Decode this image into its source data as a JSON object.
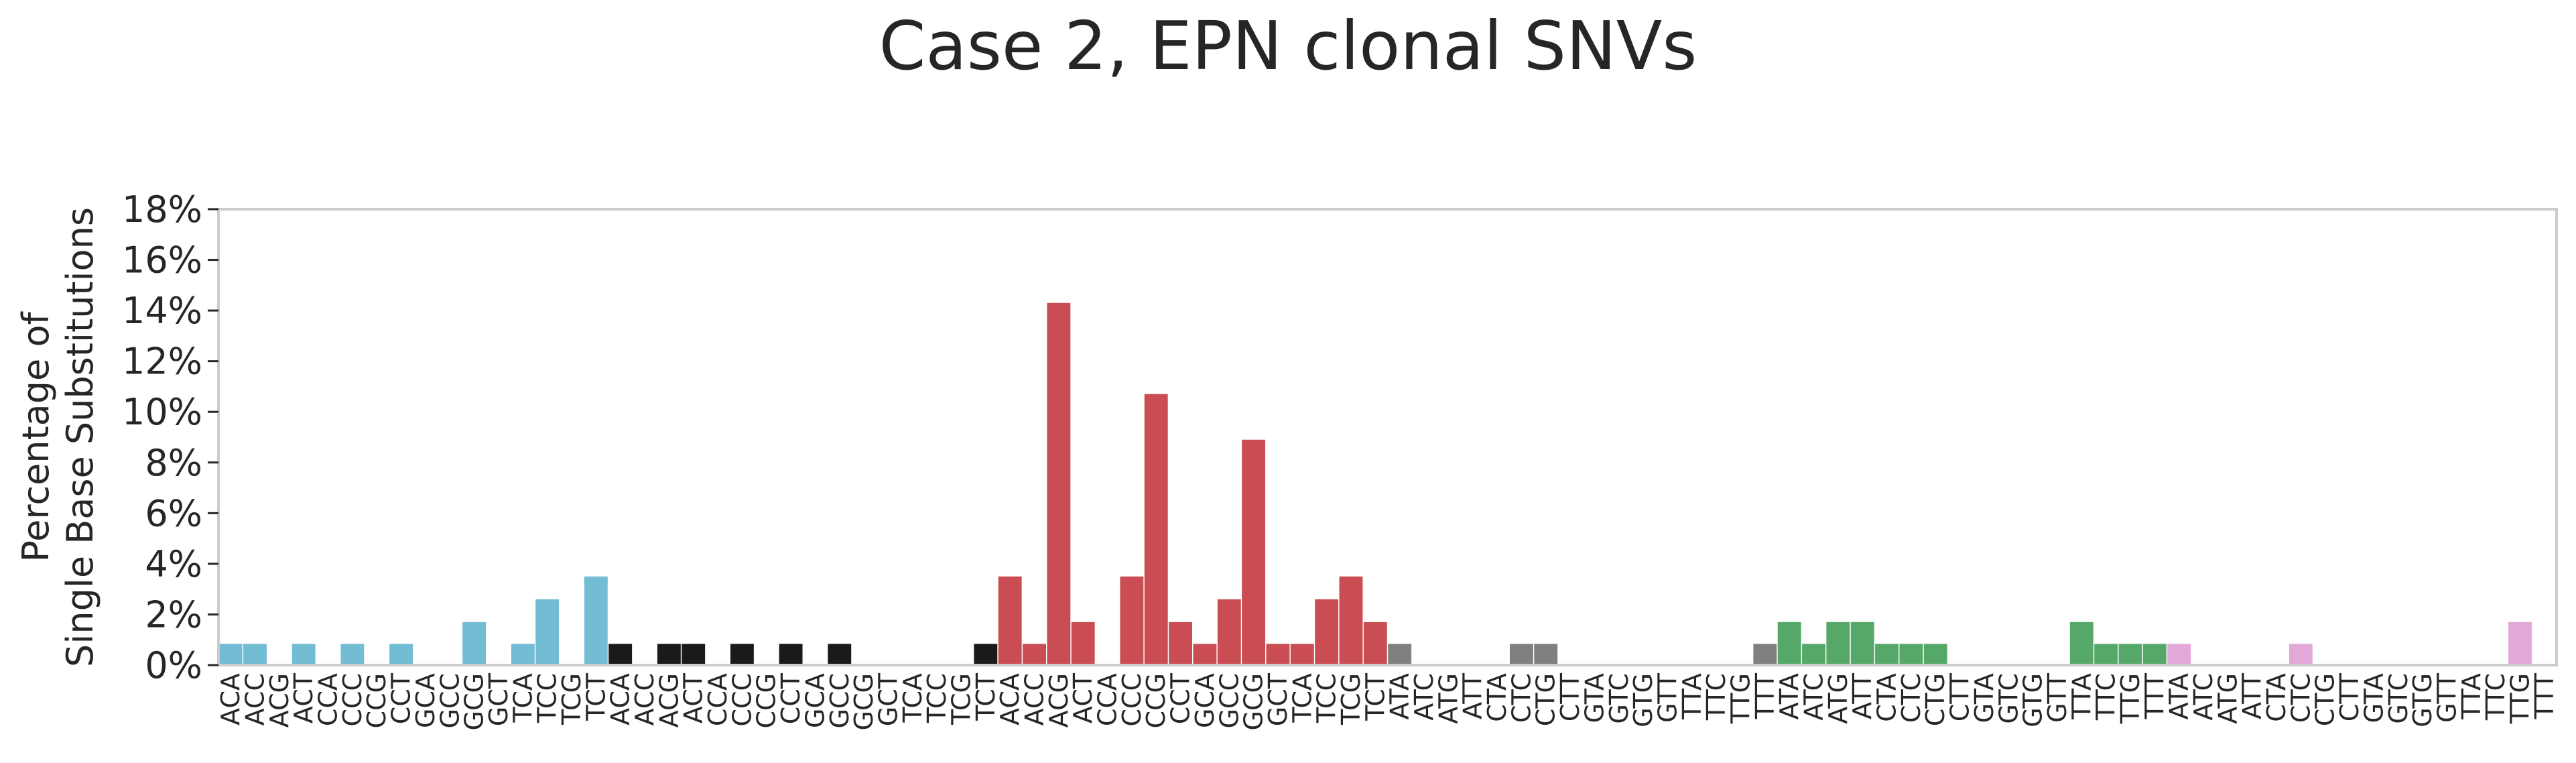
{
  "chart_data": {
    "type": "bar",
    "title": "Case 2, EPN clonal SNVs",
    "xlabel": "",
    "ylabel": [
      "Percentage of",
      "Single Base Substitutions"
    ],
    "ylim": [
      0,
      18
    ],
    "y_ticks": [
      "0%",
      "2%",
      "4%",
      "6%",
      "8%",
      "10%",
      "12%",
      "14%",
      "16%",
      "18%"
    ],
    "grid": false,
    "categories": [
      "ACA",
      "ACC",
      "ACG",
      "ACT",
      "CCA",
      "CCC",
      "CCG",
      "CCT",
      "GCA",
      "GCC",
      "GCG",
      "GCT",
      "TCA",
      "TCC",
      "TCG",
      "TCT",
      "ACA",
      "ACC",
      "ACG",
      "ACT",
      "CCA",
      "CCC",
      "CCG",
      "CCT",
      "GCA",
      "GCC",
      "GCG",
      "GCT",
      "TCA",
      "TCC",
      "TCG",
      "TCT",
      "ACA",
      "ACC",
      "ACG",
      "ACT",
      "CCA",
      "CCC",
      "CCG",
      "CCT",
      "GCA",
      "GCC",
      "GCG",
      "GCT",
      "TCA",
      "TCC",
      "TCG",
      "TCT",
      "ATA",
      "ATC",
      "ATG",
      "ATT",
      "CTA",
      "CTC",
      "CTG",
      "CTT",
      "GTA",
      "GTC",
      "GTG",
      "GTT",
      "TTA",
      "TTC",
      "TTG",
      "TTT",
      "ATA",
      "ATC",
      "ATG",
      "ATT",
      "CTA",
      "CTC",
      "CTG",
      "CTT",
      "GTA",
      "GTC",
      "GTG",
      "GTT",
      "TTA",
      "TTC",
      "TTG",
      "TTT",
      "ATA",
      "ATC",
      "ATG",
      "ATT",
      "CTA",
      "CTC",
      "CTG",
      "CTT",
      "GTA",
      "GTC",
      "GTG",
      "GTT",
      "TTA",
      "TTC",
      "TTG",
      "TTT"
    ],
    "colors": [
      "#72bcd4",
      "#1a1a1a",
      "#c94d52",
      "#808080",
      "#55a868",
      "#e2a9d8"
    ],
    "values": [
      0.84,
      0.84,
      0,
      0.84,
      0,
      0.84,
      0,
      0.84,
      0,
      0,
      1.7,
      0,
      0.84,
      2.6,
      0,
      3.5,
      0.84,
      0,
      0.84,
      0.84,
      0,
      0.84,
      0,
      0.84,
      0,
      0.84,
      0,
      0,
      0,
      0,
      0,
      0.84,
      3.5,
      0.84,
      14.3,
      1.7,
      0,
      3.5,
      10.7,
      1.7,
      0.84,
      2.6,
      8.9,
      0.84,
      0.84,
      2.6,
      3.5,
      1.7,
      0.84,
      0,
      0,
      0,
      0,
      0.84,
      0.84,
      0,
      0,
      0,
      0,
      0,
      0,
      0,
      0,
      0.84,
      1.7,
      0.84,
      1.7,
      1.7,
      0.84,
      0.84,
      0.84,
      0,
      0,
      0,
      0,
      0,
      1.7,
      0.84,
      0.84,
      0.84,
      0.84,
      0,
      0,
      0,
      0,
      0.84,
      0,
      0,
      0,
      0,
      0,
      0,
      0,
      0,
      1.7,
      0
    ]
  }
}
